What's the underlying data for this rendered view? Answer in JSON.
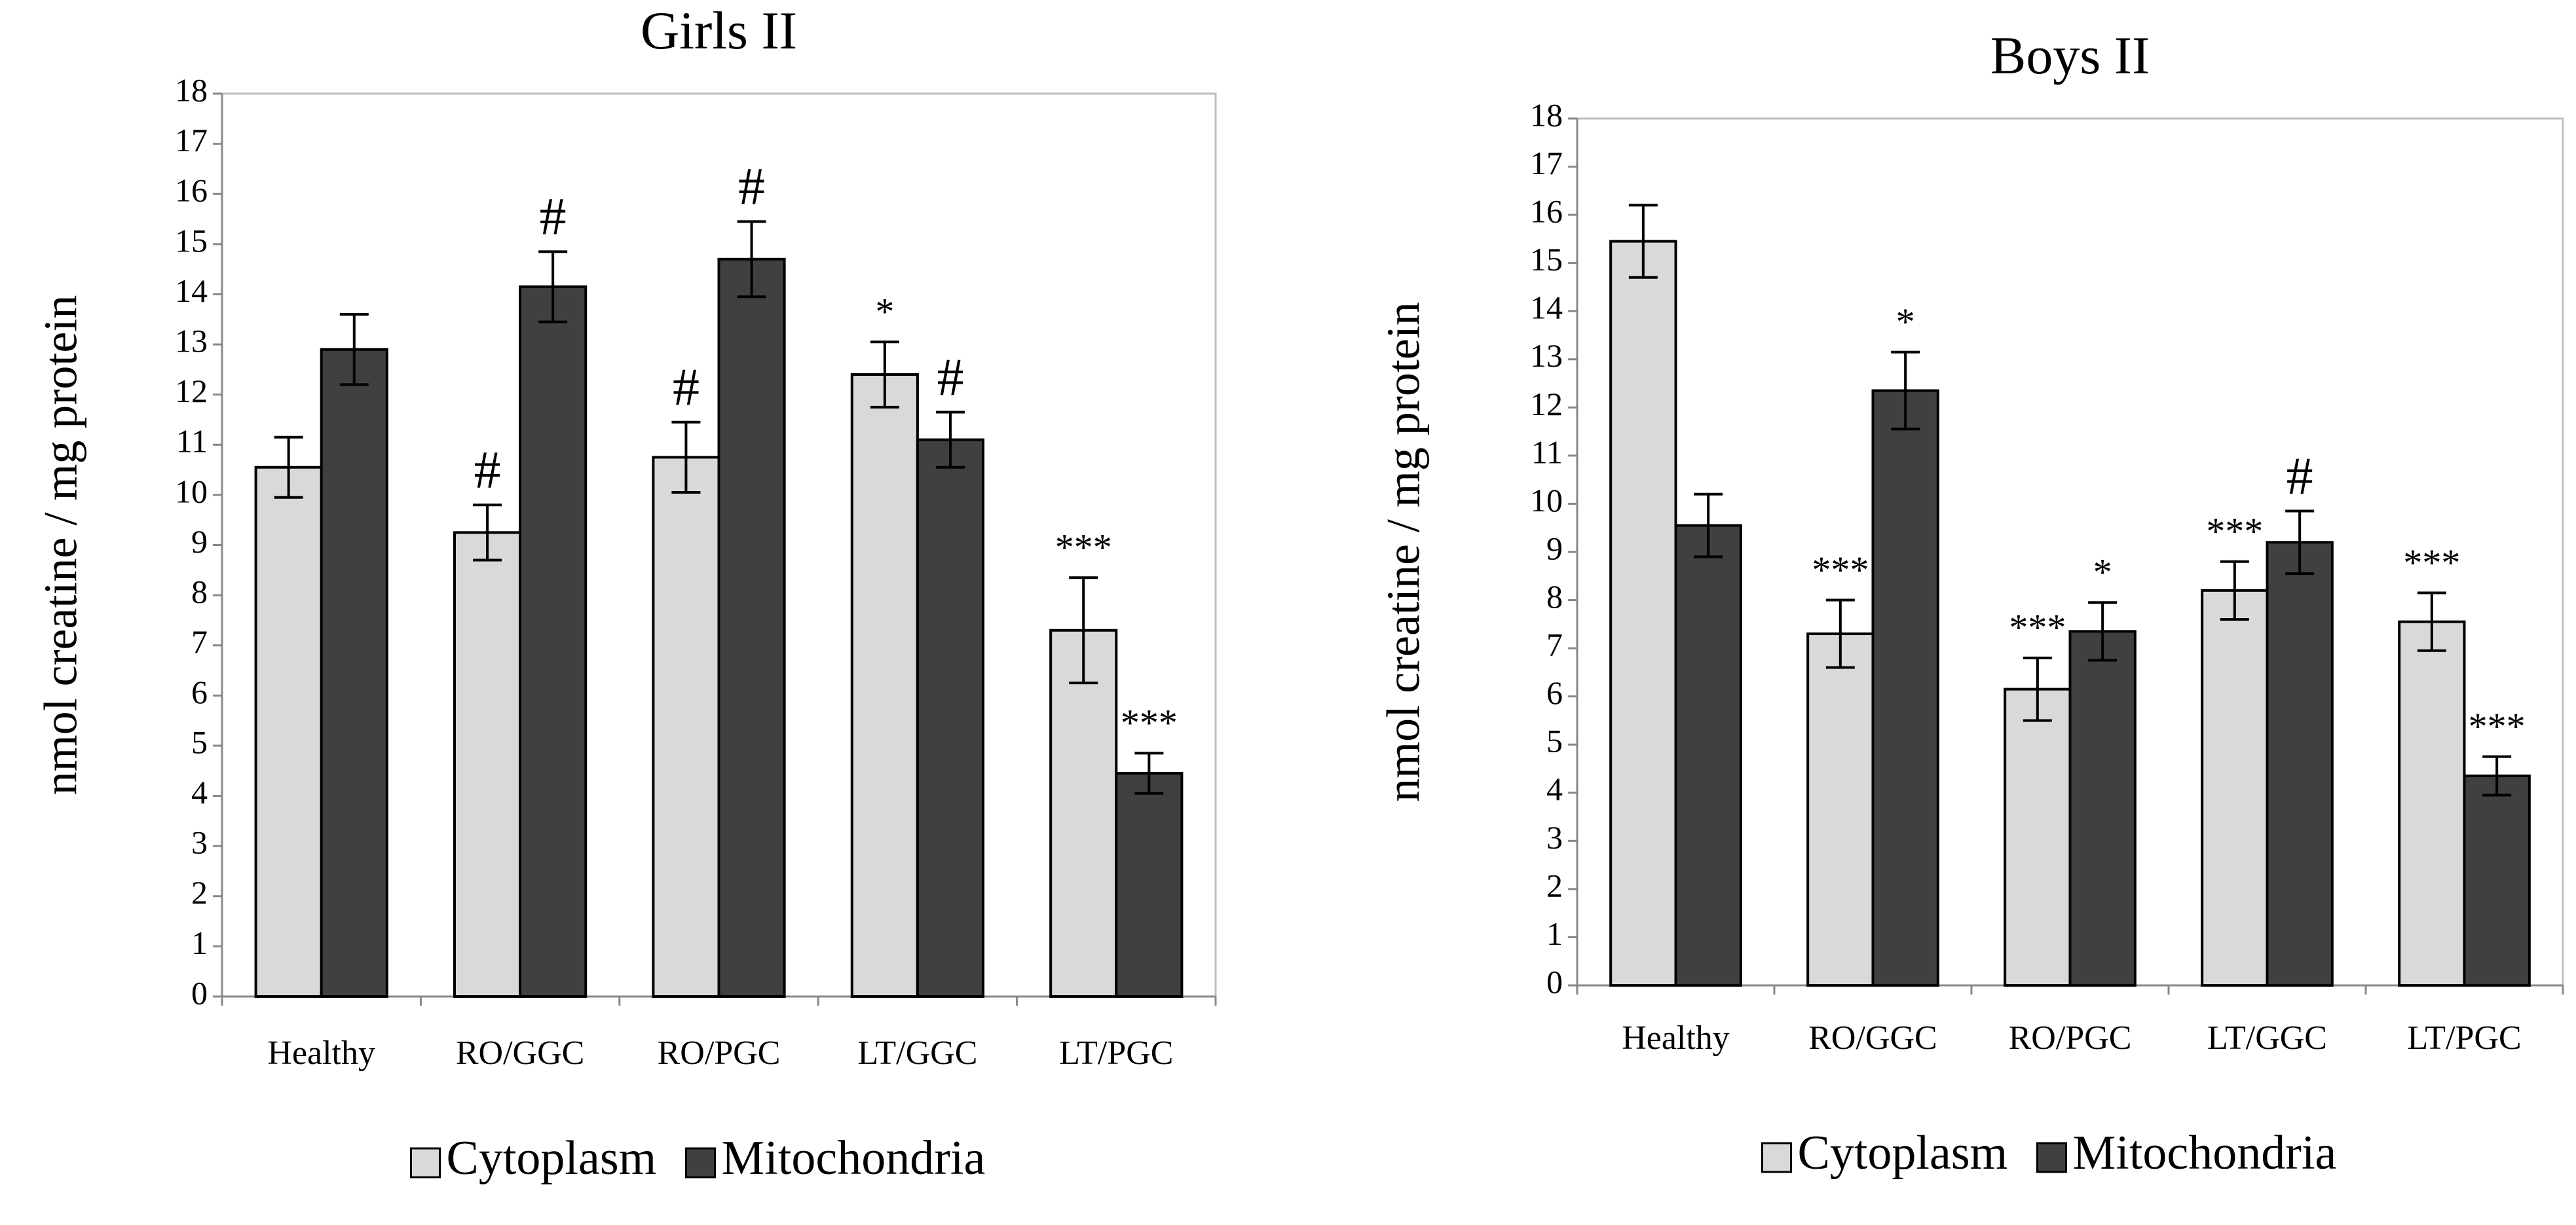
{
  "chart_data": [
    {
      "type": "bar",
      "title": "Girls II",
      "y_label": "nmol creatine / mg protein",
      "categories": [
        "Healthy",
        "RO/GGC",
        "RO/PGC",
        "LT/GGC",
        "LT/PGC"
      ],
      "ylim": [
        0,
        18
      ],
      "yticks": [
        0,
        1,
        2,
        3,
        4,
        5,
        6,
        7,
        8,
        9,
        10,
        11,
        12,
        13,
        14,
        15,
        16,
        17,
        18
      ],
      "series": [
        {
          "name": "Cytoplasm",
          "color": "#d9d9d9",
          "values": [
            10.55,
            9.25,
            10.75,
            12.4,
            7.3
          ],
          "errors": [
            0.6,
            0.55,
            0.7,
            0.65,
            1.05
          ],
          "annotations": [
            null,
            "#",
            "#",
            "*",
            "***"
          ]
        },
        {
          "name": "Mitochondria",
          "color": "#404040",
          "values": [
            12.9,
            14.15,
            14.7,
            11.1,
            4.45
          ],
          "errors": [
            0.7,
            0.7,
            0.75,
            0.55,
            0.4
          ],
          "annotations": [
            null,
            "#",
            "#",
            "#",
            "***"
          ]
        }
      ]
    },
    {
      "type": "bar",
      "title": "Boys II",
      "y_label": "nmol creatine / mg protein",
      "categories": [
        "Healthy",
        "RO/GGC",
        "RO/PGC",
        "LT/GGC",
        "LT/PGC"
      ],
      "ylim": [
        0,
        18
      ],
      "yticks": [
        0,
        1,
        2,
        3,
        4,
        5,
        6,
        7,
        8,
        9,
        10,
        11,
        12,
        13,
        14,
        15,
        16,
        17,
        18
      ],
      "series": [
        {
          "name": "Cytoplasm",
          "color": "#d9d9d9",
          "values": [
            15.45,
            7.3,
            6.15,
            8.2,
            7.55
          ],
          "errors": [
            0.75,
            0.7,
            0.65,
            0.6,
            0.6
          ],
          "annotations": [
            null,
            "***",
            "***",
            "***",
            "***"
          ]
        },
        {
          "name": "Mitochondria",
          "color": "#404040",
          "values": [
            9.55,
            12.35,
            7.35,
            9.2,
            4.35
          ],
          "errors": [
            0.65,
            0.8,
            0.6,
            0.65,
            0.4
          ],
          "annotations": [
            null,
            "*",
            "*",
            "#",
            "***"
          ]
        }
      ]
    }
  ]
}
